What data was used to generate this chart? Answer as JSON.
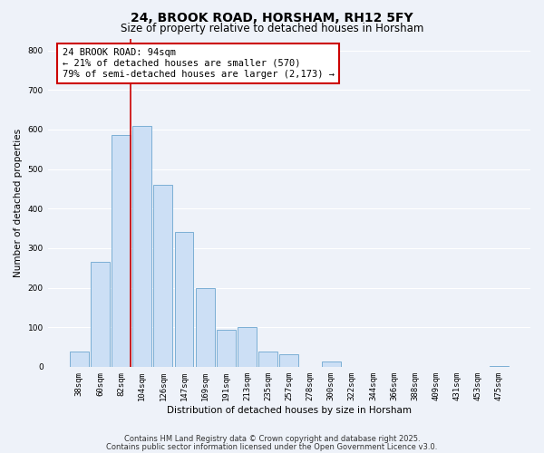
{
  "title": "24, BROOK ROAD, HORSHAM, RH12 5FY",
  "subtitle": "Size of property relative to detached houses in Horsham",
  "xlabel": "Distribution of detached houses by size in Horsham",
  "ylabel": "Number of detached properties",
  "bar_labels": [
    "38sqm",
    "60sqm",
    "82sqm",
    "104sqm",
    "126sqm",
    "147sqm",
    "169sqm",
    "191sqm",
    "213sqm",
    "235sqm",
    "257sqm",
    "278sqm",
    "300sqm",
    "322sqm",
    "344sqm",
    "366sqm",
    "388sqm",
    "409sqm",
    "431sqm",
    "453sqm",
    "475sqm"
  ],
  "bar_values": [
    38,
    265,
    585,
    610,
    460,
    340,
    200,
    93,
    100,
    38,
    32,
    0,
    14,
    0,
    0,
    0,
    0,
    0,
    0,
    0,
    3
  ],
  "bar_color": "#ccdff5",
  "bar_edge_color": "#7bafd4",
  "vline_color": "#cc0000",
  "ylim": [
    0,
    830
  ],
  "yticks": [
    0,
    100,
    200,
    300,
    400,
    500,
    600,
    700,
    800
  ],
  "ann_line1": "24 BROOK ROAD: 94sqm",
  "ann_line2": "← 21% of detached houses are smaller (570)",
  "ann_line3": "79% of semi-detached houses are larger (2,173) →",
  "footnote1": "Contains HM Land Registry data © Crown copyright and database right 2025.",
  "footnote2": "Contains public sector information licensed under the Open Government Licence v3.0.",
  "bg_color": "#eef2f9",
  "grid_color": "#ffffff",
  "title_fontsize": 10,
  "subtitle_fontsize": 8.5,
  "axis_label_fontsize": 7.5,
  "tick_fontsize": 6.5,
  "annotation_fontsize": 7.5,
  "footnote_fontsize": 6.0
}
